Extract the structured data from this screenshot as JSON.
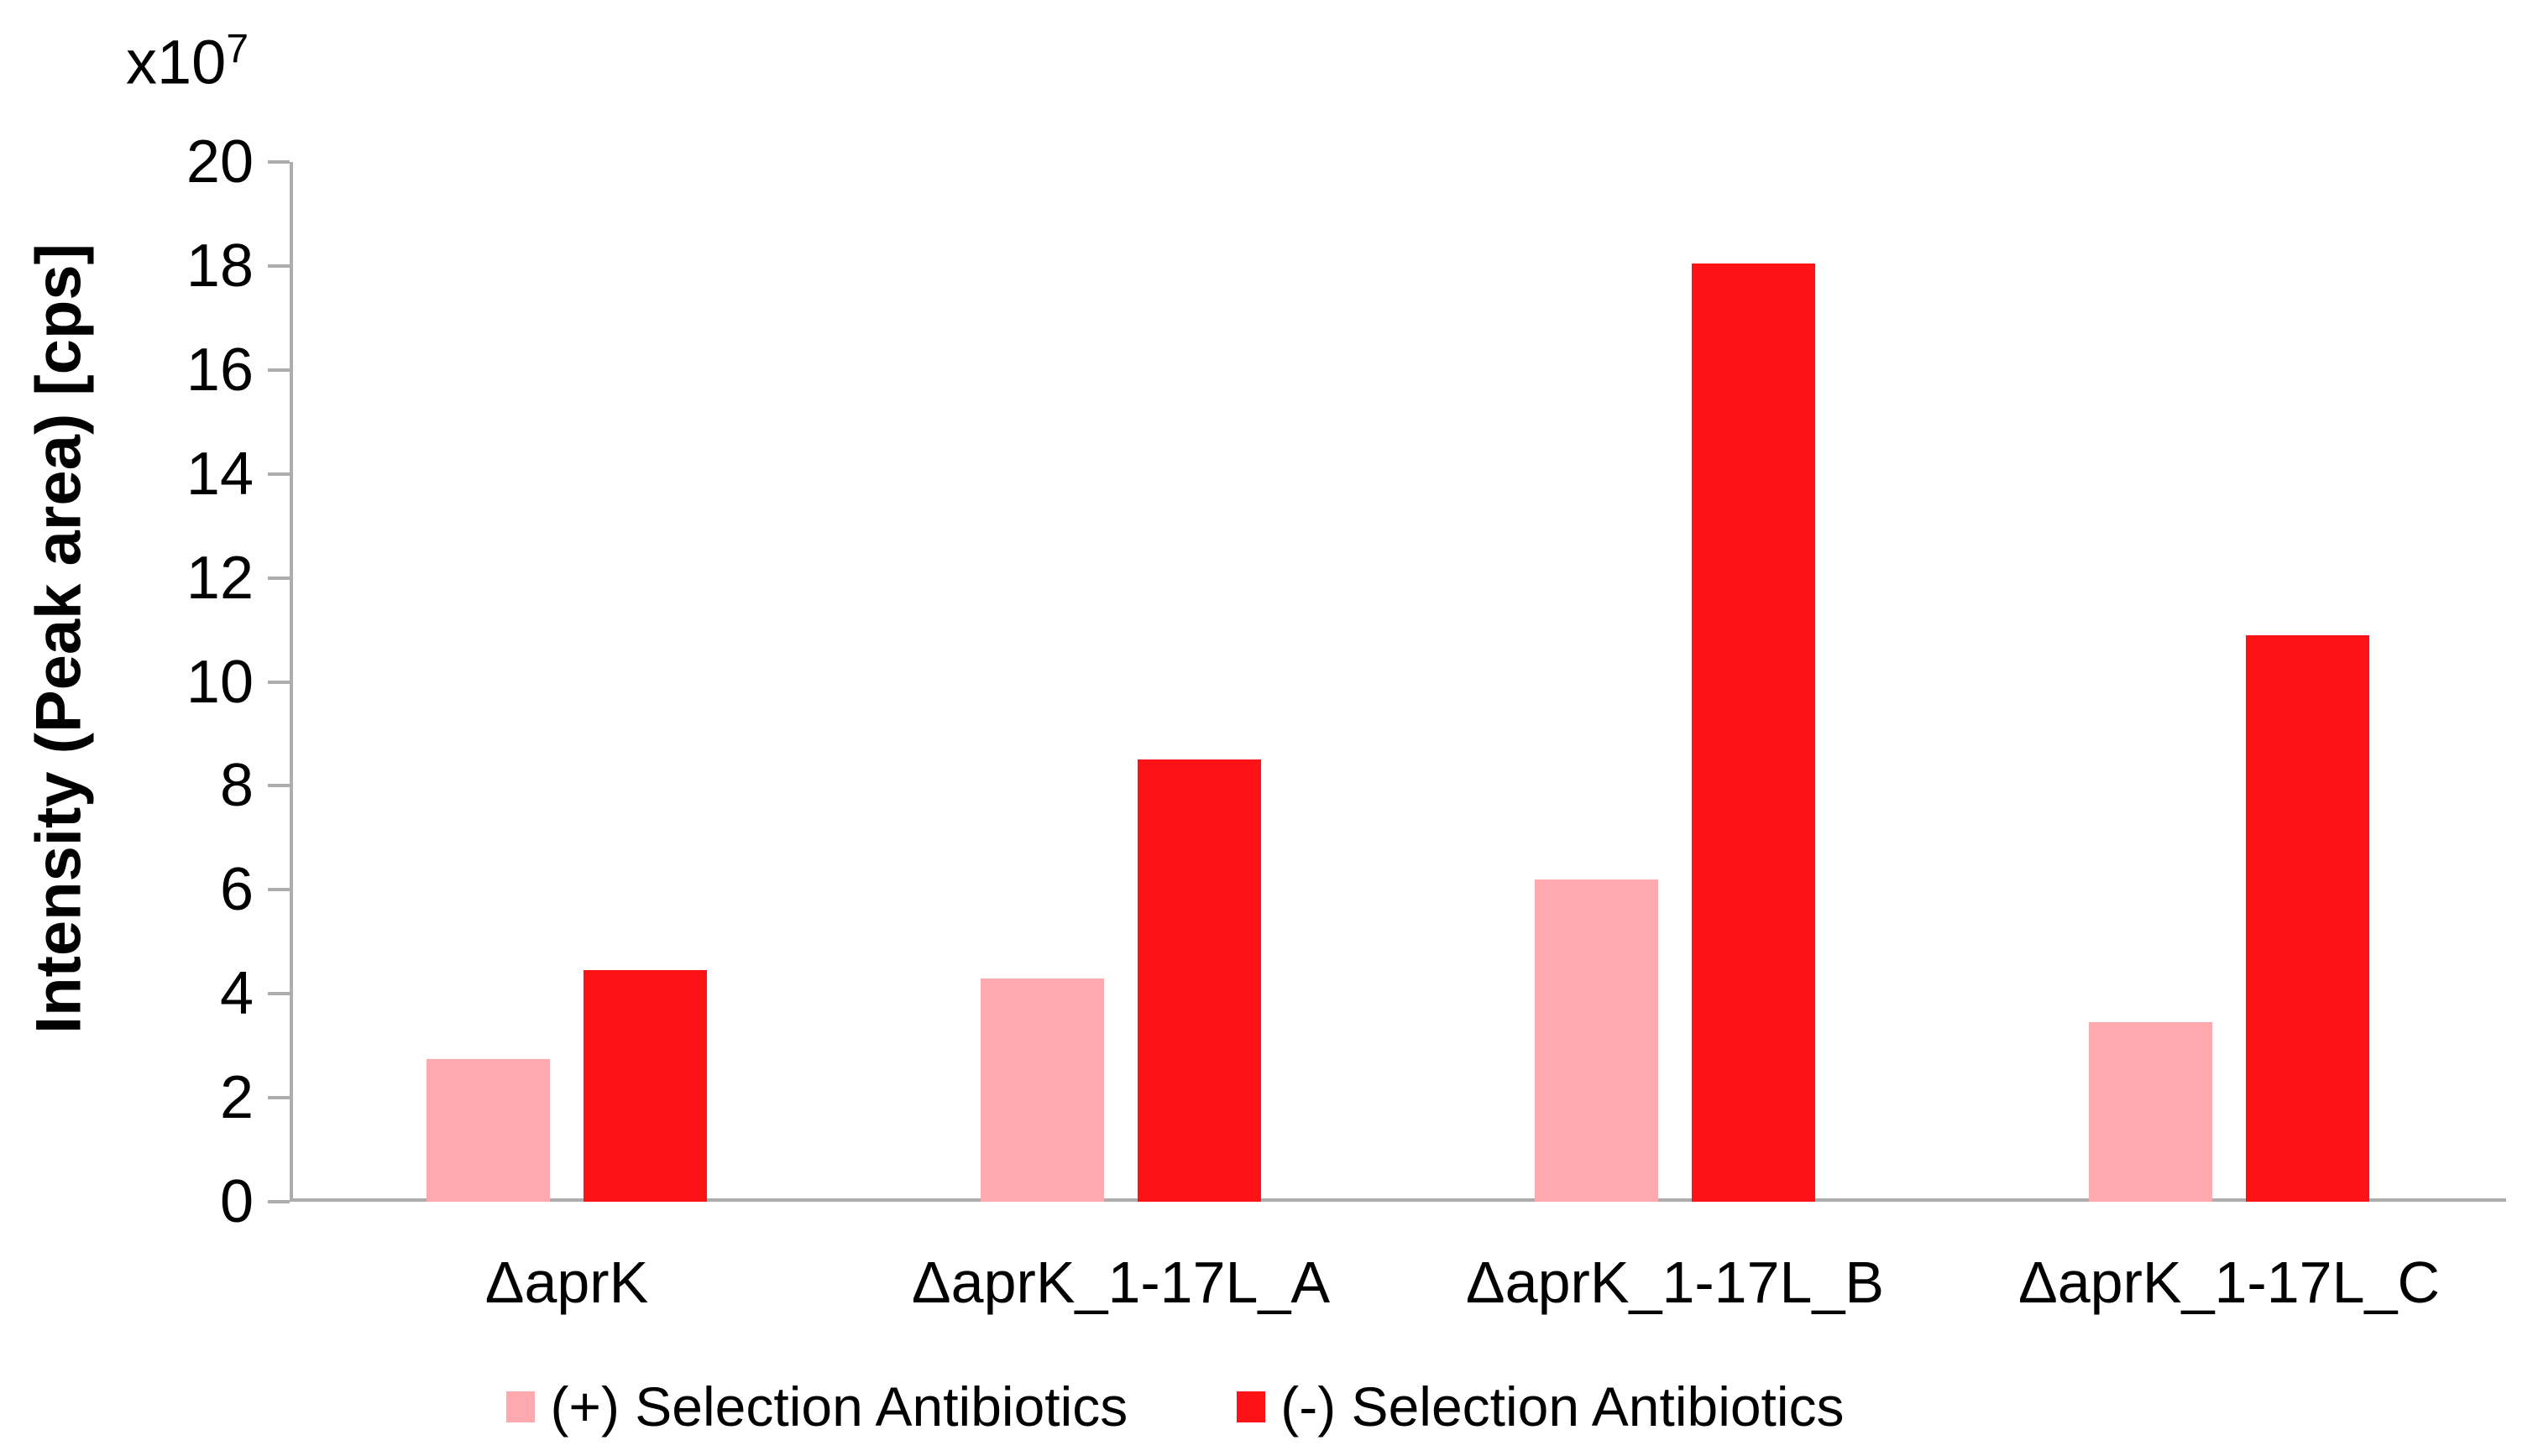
{
  "chart_data": {
    "type": "bar",
    "title": "",
    "ylabel": "Intensity (Peak area) [cps]",
    "y_multiplier_base": "x10",
    "y_multiplier_exponent": "7",
    "ylim": [
      0,
      20
    ],
    "ytick_step": 2,
    "yticks": [
      0,
      2,
      4,
      6,
      8,
      10,
      12,
      14,
      16,
      18,
      20
    ],
    "categories": [
      "ΔaprK",
      "ΔaprK_1-17L_A",
      "ΔaprK_1-17L_B",
      "ΔaprK_1-17L_C"
    ],
    "series": [
      {
        "name": "(+) Selection Antibiotics",
        "color": "#FFA9AE",
        "values": [
          2.75,
          4.3,
          6.2,
          3.45
        ]
      },
      {
        "name": "(-) Selection Antibiotics",
        "color": "#FD1216",
        "values": [
          4.45,
          8.5,
          18.05,
          10.9
        ]
      }
    ],
    "legend_position": "bottom",
    "grid": false,
    "axis_color": "#ADADAD",
    "text_color": "#000000",
    "background": "#FFFFFF"
  }
}
